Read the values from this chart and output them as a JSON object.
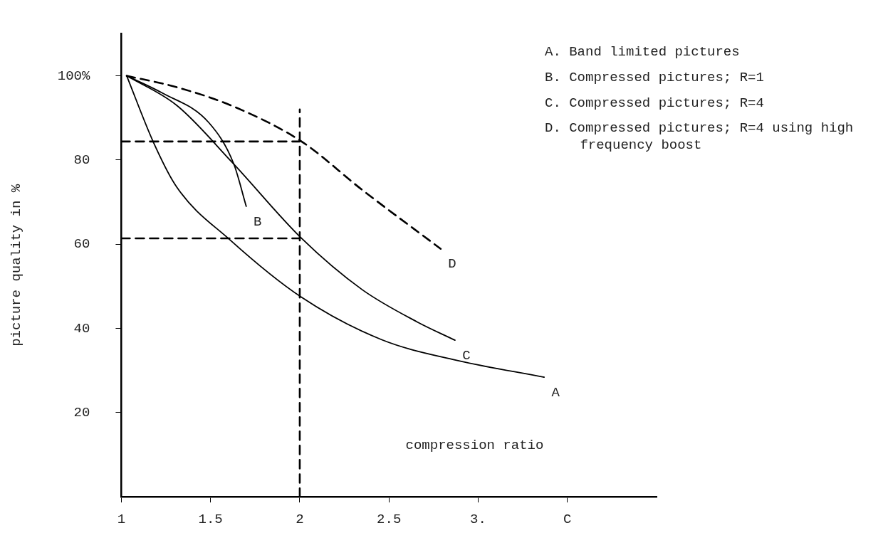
{
  "chart_data": {
    "type": "line",
    "xlabel": "compression ratio",
    "ylabel": "picture quality in %",
    "xlim": [
      1,
      4
    ],
    "ylim": [
      0,
      110
    ],
    "xticks": [
      1,
      1.5,
      2,
      2.5,
      {
        "value": 3,
        "label": "3."
      },
      {
        "value": 3.5,
        "label": "C"
      }
    ],
    "yticks": [
      20,
      40,
      60,
      80,
      {
        "value": 100,
        "label": "100%"
      }
    ],
    "grid": false,
    "marker": "none",
    "series": [
      {
        "name": "A",
        "color": "#000000",
        "x": [
          1.03,
          1.18,
          1.31,
          1.61,
          2.01,
          2.46,
          2.87,
          3.37
        ],
        "values": [
          100,
          84.2,
          73.6,
          61,
          47.4,
          37.3,
          32.5,
          28.4
        ]
      },
      {
        "name": "B",
        "color": "#000000",
        "x": [
          1.03,
          1.23,
          1.49,
          1.63,
          1.7
        ],
        "values": [
          100,
          95.9,
          88.9,
          79.1,
          69
        ]
      },
      {
        "name": "C",
        "color": "#000000",
        "x": [
          1.03,
          1.31,
          1.62,
          2.01,
          2.35,
          2.66,
          2.87
        ],
        "values": [
          100,
          93,
          79.5,
          61.4,
          49.2,
          41.5,
          37.2
        ]
      },
      {
        "name": "D",
        "color": "#000000",
        "line_style": "dashed",
        "x": [
          1.03,
          1.31,
          1.63,
          2.01,
          2.35,
          2.79
        ],
        "values": [
          100,
          97.3,
          92.7,
          84.4,
          72.9,
          58.9
        ]
      },
      {
        "color": "#000000",
        "line_style": "dashed",
        "x": [
          1,
          2
        ],
        "values": [
          84.4,
          84.4
        ]
      },
      {
        "color": "#000000",
        "line_style": "dashed",
        "x": [
          1,
          2
        ],
        "values": [
          61.4,
          61.4
        ]
      },
      {
        "color": "#000000",
        "line_style": "dashed",
        "x": [
          2,
          2
        ],
        "values": [
          0,
          92
        ]
      }
    ],
    "annotations": [
      "A. Band limited pictures",
      "B. Compressed pictures; R=1",
      "C. Compressed pictures; R=4",
      "D. Compressed pictures; R=4 using high frequency boost"
    ]
  }
}
